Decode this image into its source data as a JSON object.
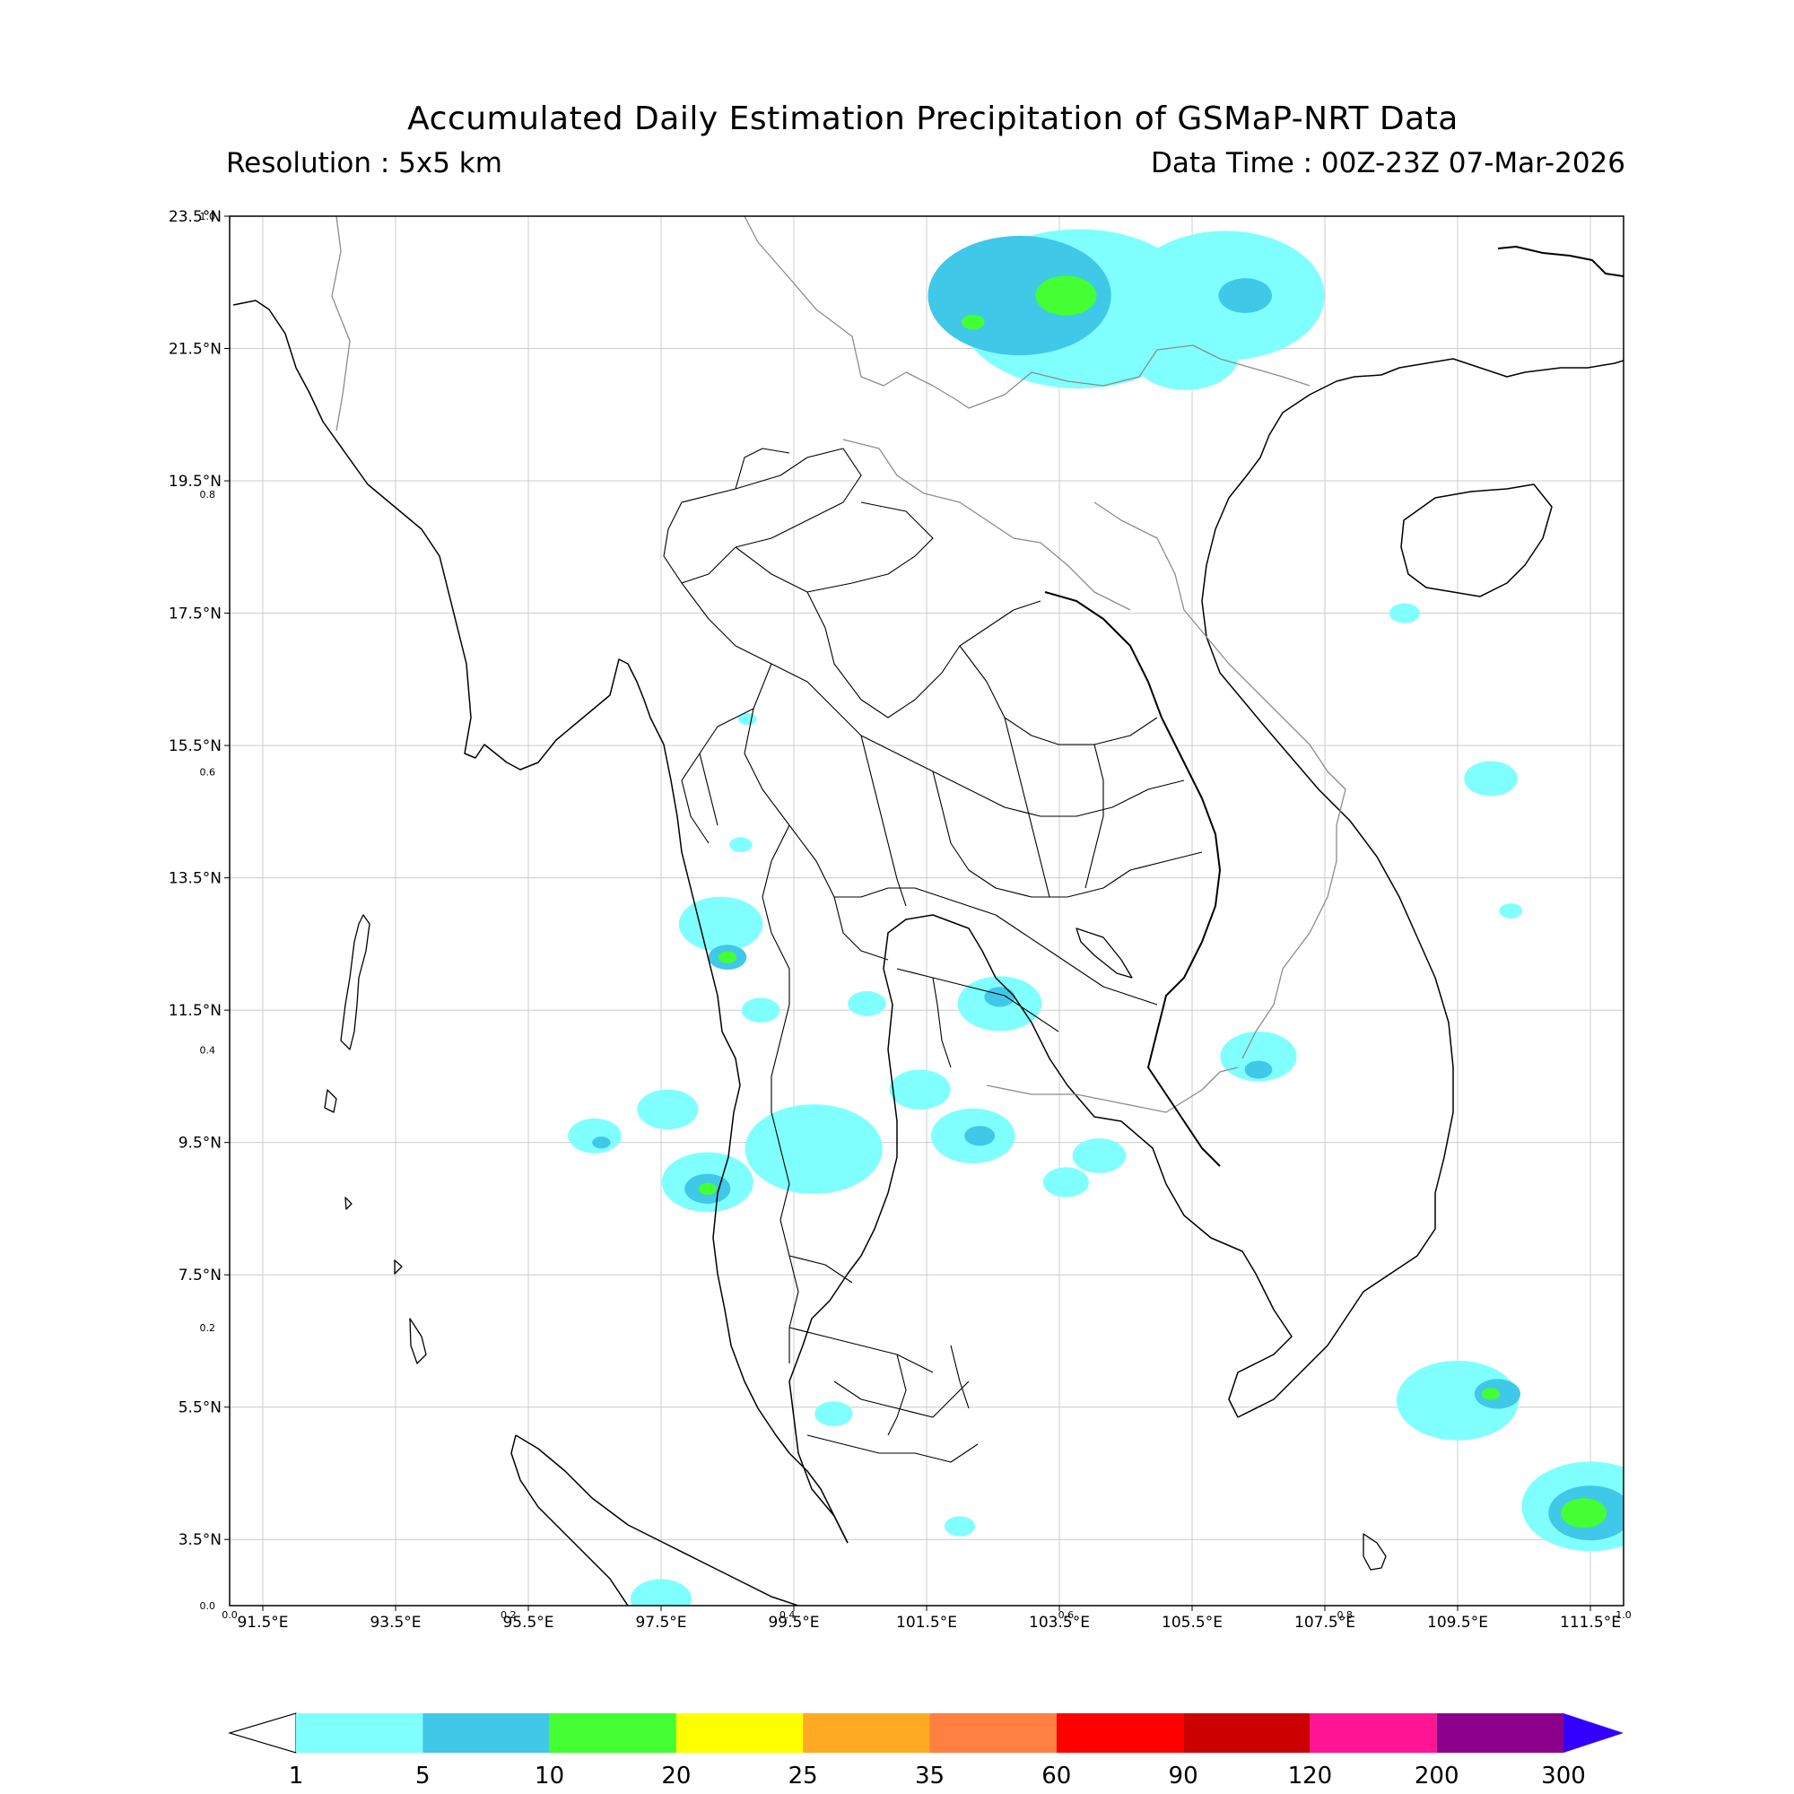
{
  "header": {
    "title": "Accumulated Daily Estimation Precipitation of GSMaP-NRT Data",
    "resolution": "Resolution : 5x5 km",
    "data_time": "Data Time : 00Z-23Z 07-Mar-2026"
  },
  "map": {
    "lon_range": [
      91.0,
      112.0
    ],
    "lat_range": [
      2.5,
      23.5
    ],
    "lat_ticks": [
      "23.5°N",
      "21.5°N",
      "19.5°N",
      "17.5°N",
      "15.5°N",
      "13.5°N",
      "11.5°N",
      "9.5°N",
      "7.5°N",
      "5.5°N",
      "3.5°N"
    ],
    "lon_ticks": [
      "91.5°E",
      "93.5°E",
      "95.5°E",
      "97.5°E",
      "99.5°E",
      "101.5°E",
      "103.5°E",
      "105.5°E",
      "107.5°E",
      "109.5°E",
      "111.5°E"
    ],
    "frame_ticks_left": [
      "1.0",
      "0.8",
      "0.6",
      "0.4",
      "0.2",
      "0.0"
    ],
    "frame_ticks_bottom": [
      "0.0",
      "0.2",
      "0.4",
      "0.6",
      "0.8",
      "1.0"
    ],
    "grid": true,
    "land_line_color": "#000000",
    "border_line_color": "#8c8c8c",
    "grid_color": "#cccccc"
  },
  "colorbar": {
    "levels": [
      "1",
      "5",
      "10",
      "20",
      "25",
      "35",
      "60",
      "90",
      "120",
      "200",
      "300"
    ],
    "colors": [
      "#80ffff",
      "#40c8e8",
      "#44ff33",
      "#ffff00",
      "#ffaa22",
      "#ff8040",
      "#ff0000",
      "#cc0000",
      "#ff1493",
      "#8b008b"
    ],
    "over_color": "#3300ff",
    "under_color": "#ffffff"
  },
  "rain_cells": [
    {
      "lon": 103.8,
      "lat": 22.1,
      "r": 1.6,
      "level": 0
    },
    {
      "lon": 102.9,
      "lat": 22.3,
      "r": 1.2,
      "level": 1
    },
    {
      "lon": 103.6,
      "lat": 22.3,
      "r": 0.4,
      "level": 2
    },
    {
      "lon": 102.2,
      "lat": 21.9,
      "r": 0.15,
      "level": 2
    },
    {
      "lon": 106.0,
      "lat": 22.3,
      "r": 1.3,
      "level": 0
    },
    {
      "lon": 106.3,
      "lat": 22.3,
      "r": 0.35,
      "level": 1
    },
    {
      "lon": 105.4,
      "lat": 21.4,
      "r": 0.7,
      "level": 0
    },
    {
      "lon": 98.4,
      "lat": 12.8,
      "r": 0.55,
      "level": 0
    },
    {
      "lon": 98.5,
      "lat": 12.3,
      "r": 0.25,
      "level": 1
    },
    {
      "lon": 98.5,
      "lat": 12.3,
      "r": 0.12,
      "level": 2
    },
    {
      "lon": 102.6,
      "lat": 11.6,
      "r": 0.55,
      "level": 0
    },
    {
      "lon": 102.6,
      "lat": 11.7,
      "r": 0.2,
      "level": 1
    },
    {
      "lon": 106.5,
      "lat": 10.8,
      "r": 0.5,
      "level": 0
    },
    {
      "lon": 106.5,
      "lat": 10.6,
      "r": 0.18,
      "level": 1
    },
    {
      "lon": 102.2,
      "lat": 9.6,
      "r": 0.55,
      "level": 0
    },
    {
      "lon": 102.3,
      "lat": 9.6,
      "r": 0.2,
      "level": 1
    },
    {
      "lon": 101.4,
      "lat": 10.3,
      "r": 0.4,
      "level": 0
    },
    {
      "lon": 99.8,
      "lat": 9.4,
      "r": 0.9,
      "level": 0
    },
    {
      "lon": 96.5,
      "lat": 9.6,
      "r": 0.35,
      "level": 0
    },
    {
      "lon": 96.6,
      "lat": 9.5,
      "r": 0.12,
      "level": 1
    },
    {
      "lon": 98.2,
      "lat": 8.9,
      "r": 0.6,
      "level": 0
    },
    {
      "lon": 98.2,
      "lat": 8.8,
      "r": 0.3,
      "level": 1
    },
    {
      "lon": 98.2,
      "lat": 8.8,
      "r": 0.12,
      "level": 2
    },
    {
      "lon": 97.6,
      "lat": 10.0,
      "r": 0.4,
      "level": 0
    },
    {
      "lon": 99.0,
      "lat": 11.5,
      "r": 0.25,
      "level": 0
    },
    {
      "lon": 100.6,
      "lat": 11.6,
      "r": 0.25,
      "level": 0
    },
    {
      "lon": 104.1,
      "lat": 9.3,
      "r": 0.35,
      "level": 0
    },
    {
      "lon": 103.6,
      "lat": 8.9,
      "r": 0.3,
      "level": 0
    },
    {
      "lon": 109.5,
      "lat": 5.6,
      "r": 0.8,
      "level": 0
    },
    {
      "lon": 110.1,
      "lat": 5.7,
      "r": 0.3,
      "level": 1
    },
    {
      "lon": 110.0,
      "lat": 5.7,
      "r": 0.12,
      "level": 2
    },
    {
      "lon": 111.5,
      "lat": 4.0,
      "r": 0.9,
      "level": 0
    },
    {
      "lon": 111.5,
      "lat": 3.9,
      "r": 0.55,
      "level": 1
    },
    {
      "lon": 111.4,
      "lat": 3.9,
      "r": 0.3,
      "level": 2
    },
    {
      "lon": 110.0,
      "lat": 15.0,
      "r": 0.35,
      "level": 0
    },
    {
      "lon": 108.7,
      "lat": 17.5,
      "r": 0.2,
      "level": 0
    },
    {
      "lon": 97.5,
      "lat": 2.6,
      "r": 0.4,
      "level": 0
    },
    {
      "lon": 100.1,
      "lat": 5.4,
      "r": 0.25,
      "level": 0
    },
    {
      "lon": 102.0,
      "lat": 3.7,
      "r": 0.2,
      "level": 0
    },
    {
      "lon": 98.7,
      "lat": 14.0,
      "r": 0.15,
      "level": 0
    },
    {
      "lon": 98.8,
      "lat": 15.9,
      "r": 0.12,
      "level": 0
    },
    {
      "lon": 110.3,
      "lat": 13.0,
      "r": 0.15,
      "level": 0
    }
  ]
}
